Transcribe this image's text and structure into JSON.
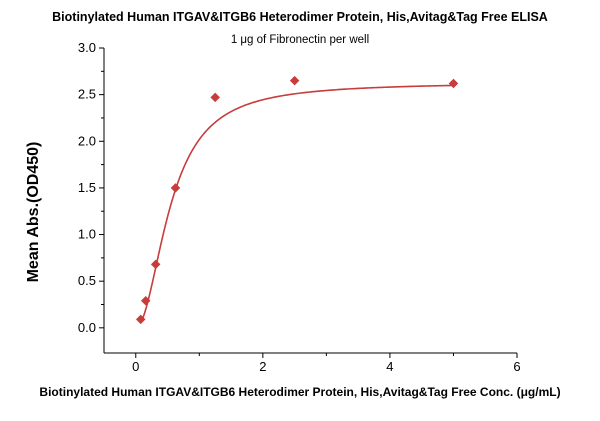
{
  "chart_data": {
    "type": "scatter",
    "title": "Biotinylated Human ITGAV&ITGB6 Heterodimer Protein, His,Avitag&Tag Free ELISA",
    "subtitle": "1 μg of Fibronectin per well",
    "xlabel": "Biotinylated Human ITGAV&ITGB6 Heterodimer Protein, His,Avitag&Tag Free Conc. (μg/mL)",
    "ylabel": "Mean Abs.(OD450)",
    "xlim": [
      -0.5,
      6
    ],
    "ylim": [
      -0.27,
      3.0
    ],
    "x_ticks": [
      0,
      2,
      4,
      6
    ],
    "y_ticks": [
      0.0,
      0.5,
      1.0,
      1.5,
      2.0,
      2.5,
      3.0
    ],
    "grid": false,
    "series": [
      {
        "marker": "diamond",
        "color": "#c83c3c",
        "x": [
          0.078,
          0.156,
          0.313,
          0.625,
          1.25,
          2.5,
          5.0
        ],
        "y": [
          0.09,
          0.29,
          0.68,
          1.5,
          2.47,
          2.65,
          2.62
        ]
      }
    ],
    "fit": {
      "type": "4PL",
      "color": "#c83c3c",
      "bottom": 0.0,
      "top": 2.63,
      "ec50": 0.55,
      "hill": 2.0
    }
  }
}
